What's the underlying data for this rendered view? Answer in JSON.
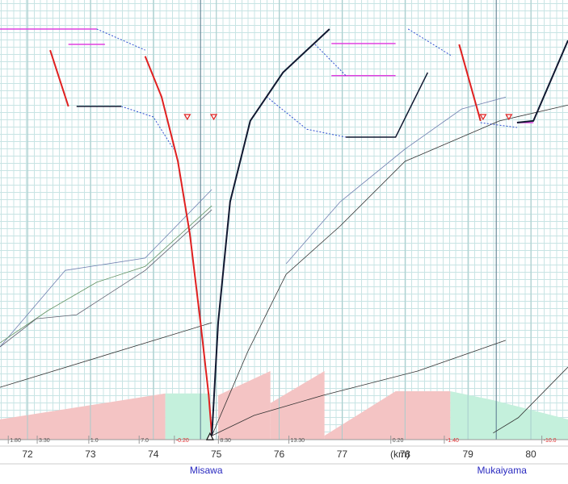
{
  "chart_data": {
    "type": "line",
    "x_label": "(km)",
    "xlim": [
      71.563,
      80.59
    ],
    "ylim": [
      0,
      100
    ],
    "xticks": [
      72,
      73,
      74,
      75,
      76,
      77,
      78,
      79,
      80
    ],
    "grid": true,
    "stations": [
      {
        "name": "Misawa",
        "km": 74.75
      },
      {
        "name": "Mukaiyama",
        "km": 79.45
      }
    ],
    "stop_marker": {
      "km": 74.9,
      "v": 0.9
    },
    "speed_markers": [
      {
        "km": 74.54,
        "v": 73.4
      },
      {
        "km": 74.96,
        "v": 73.4
      },
      {
        "km": 79.24,
        "v": 73.4
      },
      {
        "km": 79.65,
        "v": 73.4
      }
    ],
    "gradients": [
      {
        "start": 71.72,
        "value": 1.8,
        "label": "1.80"
      },
      {
        "start": 72.18,
        "value": 3.3,
        "label": "3.30"
      },
      {
        "start": 73.0,
        "value": 1,
        "label": "1.0"
      },
      {
        "start": 73.8,
        "value": 7,
        "label": "7.0"
      },
      {
        "start": 74.36,
        "value": -0.2,
        "label": "-0.20"
      },
      {
        "start": 75.06,
        "value": 8.3,
        "label": "8.30"
      },
      {
        "start": 76.18,
        "value": 13.3,
        "label": "13.30"
      },
      {
        "start": 77.8,
        "value": 0.2,
        "label": "0.20"
      },
      {
        "start": 78.65,
        "value": -1.4,
        "label": "-1.40"
      },
      {
        "start": 80.2,
        "value": -10,
        "label": "-10.0"
      }
    ],
    "areas": [
      {
        "color": "#f4c4c4",
        "x": [
          71.563,
          74.19
        ],
        "values": [
          4.6,
          10.5
        ]
      },
      {
        "color": "#c4f0dc",
        "x": [
          74.19,
          74.9
        ],
        "values": [
          10.5,
          10.5
        ]
      },
      {
        "color": "#f4c4c4",
        "x": [
          75.03,
          75.86
        ],
        "values": [
          10.1,
          15.6
        ]
      },
      {
        "color": "#f4c4c4",
        "x": [
          75.86,
          76.72
        ],
        "values": [
          8.3,
          15.6
        ]
      },
      {
        "color": "#f4c4c4",
        "x": [
          76.72,
          77.85,
          78.72
        ],
        "values": [
          0.9,
          11.0,
          11.0
        ]
      },
      {
        "color": "#c4f0dc",
        "x": [
          78.72,
          79.4,
          80.59
        ],
        "values": [
          11.0,
          9.0,
          4.6
        ]
      }
    ],
    "series": [
      {
        "color": "#7080b0",
        "width": 0.8,
        "x": [
          71.563,
          72.6,
          73.87,
          74.93
        ],
        "values": [
          21.1,
          38.5,
          41.3,
          56.9
        ]
      },
      {
        "color": "#609060",
        "width": 0.8,
        "x": [
          71.563,
          72.33,
          73.1,
          73.87,
          74.93
        ],
        "values": [
          22.0,
          29.4,
          35.8,
          39.4,
          53.2
        ]
      },
      {
        "color": "#606070",
        "width": 0.8,
        "x": [
          71.563,
          72.14,
          72.78,
          73.87,
          74.93
        ],
        "values": [
          21.1,
          27.5,
          28.4,
          38.5,
          52.3
        ]
      },
      {
        "color": "#303030",
        "width": 0.8,
        "x": [
          71.563,
          74.93
        ],
        "values": [
          11.9,
          26.6
        ]
      },
      {
        "color": "#303030",
        "width": 0.8,
        "x": [
          74.93,
          75.5,
          76.11,
          76.97,
          78.0,
          79.5,
          80.59
        ],
        "values": [
          0.9,
          20.0,
          37.6,
          48.6,
          63.3,
          72.5,
          76.1
        ]
      },
      {
        "color": "#7080b0",
        "width": 0.8,
        "x": [
          76.11,
          76.97,
          78.0,
          78.9,
          79.6
        ],
        "values": [
          40.0,
          54.1,
          66.1,
          75.2,
          77.9
        ]
      },
      {
        "color": "#303030",
        "width": 0.8,
        "x": [
          74.93,
          75.6,
          76.7,
          78.2,
          79.6
        ],
        "values": [
          0.9,
          5.5,
          10.1,
          15.6,
          22.6
        ]
      },
      {
        "color": "#303030",
        "width": 0.8,
        "x": [
          79.4,
          79.8,
          80.59
        ],
        "values": [
          1.5,
          5.0,
          16.5
        ]
      },
      {
        "color": "#e040e0",
        "width": 1.5,
        "x": [
          71.563,
          73.1
        ],
        "values": [
          93.4,
          93.4
        ]
      },
      {
        "color": "#e040e0",
        "width": 1.5,
        "x": [
          72.65,
          73.23
        ],
        "values": [
          89.9,
          89.9
        ]
      },
      {
        "color": "#e040e0",
        "width": 1.5,
        "x": [
          76.83,
          77.85
        ],
        "values": [
          90.1,
          90.1
        ]
      },
      {
        "color": "#e040e0",
        "width": 1.5,
        "x": [
          76.83,
          77.85
        ],
        "values": [
          82.8,
          82.8
        ]
      },
      {
        "color": "#e040e0",
        "width": 1.5,
        "x": [
          79.78,
          80.04
        ],
        "values": [
          72.1,
          72.1
        ]
      },
      {
        "color": "#3050d0",
        "width": 1,
        "dash": true,
        "x": [
          73.1,
          73.87
        ],
        "values": [
          93.4,
          88.6
        ]
      },
      {
        "color": "#3050d0",
        "width": 1,
        "dash": true,
        "x": [
          73.49,
          74.0,
          74.32
        ],
        "values": [
          75.8,
          73.4,
          66.1
        ]
      },
      {
        "color": "#3050d0",
        "width": 1,
        "dash": true,
        "x": [
          76.57,
          77.06
        ],
        "values": [
          89.9,
          82.8
        ]
      },
      {
        "color": "#3050d0",
        "width": 1,
        "dash": true,
        "x": [
          75.8,
          76.44,
          77.06
        ],
        "values": [
          78.0,
          70.6,
          68.8
        ]
      },
      {
        "color": "#3050d0",
        "width": 1,
        "dash": true,
        "x": [
          78.05,
          78.75
        ],
        "values": [
          93.4,
          87.2
        ]
      },
      {
        "color": "#3050d0",
        "width": 1,
        "dash": true,
        "x": [
          79.2,
          79.78
        ],
        "values": [
          72.1,
          71.0
        ]
      },
      {
        "color": "#e02020",
        "width": 2,
        "x": [
          72.36,
          72.65
        ],
        "values": [
          88.6,
          75.8
        ]
      },
      {
        "color": "#e02020",
        "width": 2,
        "x": [
          73.87,
          74.13,
          74.39,
          74.58,
          74.75,
          74.88,
          74.93
        ],
        "values": [
          87.2,
          78.0,
          63.3,
          46.8,
          26.6,
          10.1,
          0.9
        ]
      },
      {
        "color": "#e02020",
        "width": 2,
        "x": [
          78.86,
          79.2
        ],
        "values": [
          89.9,
          72.5
        ]
      },
      {
        "color": "#101830",
        "width": 2,
        "x": [
          74.93,
          75.03,
          75.22,
          75.54,
          76.06,
          76.8
        ],
        "values": [
          0.9,
          26.6,
          54.1,
          72.5,
          83.5,
          93.4
        ]
      },
      {
        "color": "#101830",
        "width": 1.5,
        "x": [
          72.78,
          73.49
        ],
        "values": [
          75.8,
          75.8
        ]
      },
      {
        "color": "#101830",
        "width": 1.5,
        "x": [
          77.06,
          77.85,
          78.36
        ],
        "values": [
          68.8,
          68.8,
          83.5
        ]
      },
      {
        "color": "#101830",
        "width": 2,
        "x": [
          79.78,
          80.04,
          80.59
        ],
        "values": [
          72.1,
          72.5,
          90.8
        ]
      }
    ]
  }
}
